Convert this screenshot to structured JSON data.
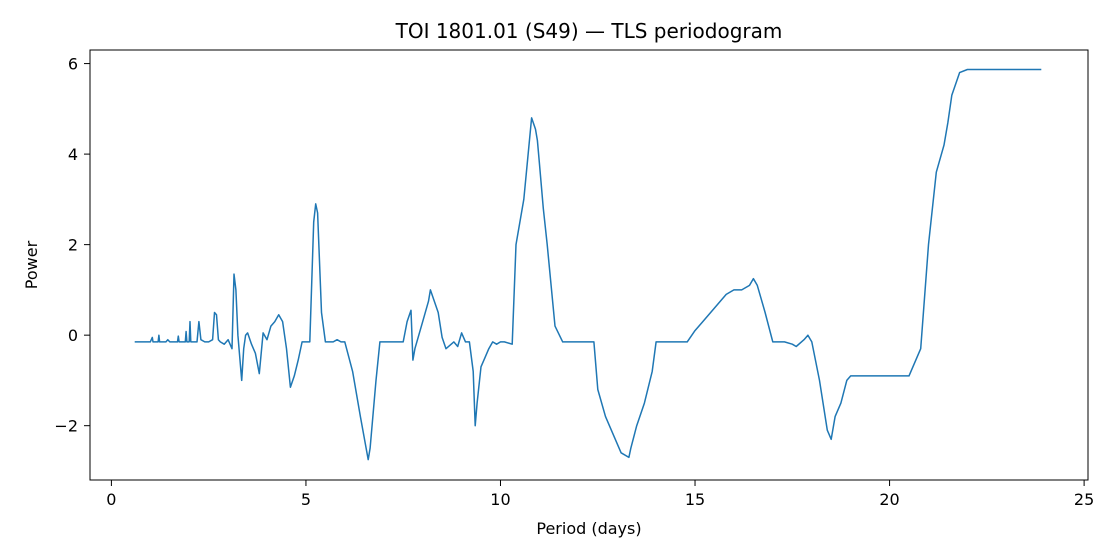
{
  "chart_data": {
    "type": "line",
    "title": "TOI 1801.01 (S49) — TLS periodogram",
    "xlabel": "Period (days)",
    "ylabel": "Power",
    "xlim": [
      -0.55,
      25.1
    ],
    "ylim": [
      -3.2,
      6.3
    ],
    "xticks": [
      0,
      5,
      10,
      15,
      20,
      25
    ],
    "yticks": [
      -2,
      0,
      2,
      4,
      6
    ],
    "xtick_labels": [
      "0",
      "5",
      "10",
      "15",
      "20",
      "25"
    ],
    "ytick_labels": [
      "−2",
      "0",
      "2",
      "4",
      "6"
    ],
    "grid": false,
    "legend": "none",
    "series": [
      {
        "color": "#1f77b4",
        "x": [
          0.6,
          1.0,
          1.05,
          1.07,
          1.1,
          1.2,
          1.22,
          1.24,
          1.3,
          1.4,
          1.45,
          1.5,
          1.7,
          1.72,
          1.74,
          1.8,
          1.9,
          1.92,
          1.94,
          2.0,
          2.02,
          2.04,
          2.1,
          2.2,
          2.25,
          2.3,
          2.4,
          2.5,
          2.6,
          2.65,
          2.7,
          2.75,
          2.8,
          2.9,
          3.0,
          3.1,
          3.15,
          3.2,
          3.25,
          3.3,
          3.35,
          3.4,
          3.45,
          3.5,
          3.6,
          3.7,
          3.8,
          3.9,
          4.0,
          4.1,
          4.2,
          4.3,
          4.4,
          4.5,
          4.6,
          4.7,
          4.8,
          4.9,
          5.0,
          5.1,
          5.2,
          5.25,
          5.3,
          5.4,
          5.5,
          5.6,
          5.7,
          5.8,
          5.9,
          6.0,
          6.2,
          6.4,
          6.6,
          6.65,
          6.8,
          6.9,
          7.0,
          7.2,
          7.5,
          7.6,
          7.7,
          7.75,
          7.8,
          8.0,
          8.15,
          8.2,
          8.4,
          8.5,
          8.6,
          8.8,
          8.9,
          9.0,
          9.1,
          9.2,
          9.3,
          9.35,
          9.4,
          9.5,
          9.6,
          9.7,
          9.8,
          9.9,
          10.0,
          10.1,
          10.3,
          10.4,
          10.6,
          10.8,
          10.9,
          10.95,
          11.0,
          11.1,
          11.2,
          11.4,
          11.6,
          11.7,
          11.8,
          12.0,
          12.4,
          12.5,
          12.7,
          12.9,
          13.1,
          13.3,
          13.35,
          13.5,
          13.7,
          13.9,
          14.0,
          14.2,
          14.5,
          14.8,
          15.0,
          15.2,
          15.5,
          15.8,
          16.0,
          16.2,
          16.4,
          16.5,
          16.6,
          16.7,
          16.8,
          17.0,
          17.3,
          17.5,
          17.6,
          17.8,
          17.9,
          18.0,
          18.2,
          18.4,
          18.5,
          18.6,
          18.75,
          18.9,
          19.0,
          19.2,
          19.5,
          20.0,
          20.5,
          20.8,
          21.0,
          21.2,
          21.4,
          21.5,
          21.6,
          21.8,
          22.0,
          22.5,
          23.0,
          23.5,
          23.9
        ],
        "y": [
          -0.15,
          -0.15,
          -0.05,
          -0.15,
          -0.15,
          -0.15,
          0.0,
          -0.15,
          -0.15,
          -0.15,
          -0.1,
          -0.15,
          -0.15,
          -0.02,
          -0.15,
          -0.15,
          -0.15,
          0.08,
          -0.15,
          -0.15,
          0.3,
          -0.15,
          -0.15,
          -0.15,
          0.3,
          -0.1,
          -0.15,
          -0.15,
          -0.1,
          0.5,
          0.45,
          -0.1,
          -0.15,
          -0.2,
          -0.1,
          -0.3,
          1.35,
          1.0,
          0.0,
          -0.5,
          -1.0,
          -0.3,
          0.0,
          0.05,
          -0.2,
          -0.4,
          -0.85,
          0.05,
          -0.1,
          0.2,
          0.3,
          0.45,
          0.3,
          -0.3,
          -1.15,
          -0.9,
          -0.55,
          -0.15,
          -0.15,
          -0.15,
          2.5,
          2.9,
          2.7,
          0.5,
          -0.15,
          -0.15,
          -0.15,
          -0.1,
          -0.15,
          -0.15,
          -0.8,
          -1.8,
          -2.75,
          -2.5,
          -1.0,
          -0.15,
          -0.15,
          -0.15,
          -0.15,
          0.3,
          0.55,
          -0.55,
          -0.3,
          0.3,
          0.75,
          1.0,
          0.5,
          -0.05,
          -0.3,
          -0.15,
          -0.25,
          0.05,
          -0.15,
          -0.15,
          -0.8,
          -2.0,
          -1.5,
          -0.7,
          -0.5,
          -0.3,
          -0.15,
          -0.2,
          -0.15,
          -0.15,
          -0.2,
          2.0,
          3.0,
          4.8,
          4.55,
          4.3,
          3.8,
          2.8,
          2.0,
          0.2,
          -0.15,
          -0.15,
          -0.15,
          -0.15,
          -0.15,
          -1.2,
          -1.8,
          -2.2,
          -2.6,
          -2.7,
          -2.5,
          -2.0,
          -1.5,
          -0.8,
          -0.15,
          -0.15,
          -0.15,
          -0.15,
          0.1,
          0.3,
          0.6,
          0.9,
          1.0,
          1.0,
          1.1,
          1.25,
          1.1,
          0.8,
          0.5,
          -0.15,
          -0.15,
          -0.2,
          -0.25,
          -0.1,
          0.0,
          -0.15,
          -1.0,
          -2.1,
          -2.3,
          -1.8,
          -1.5,
          -1.0,
          -0.9,
          -0.9,
          -0.9,
          -0.9,
          -0.9,
          -0.3,
          2.0,
          3.6,
          4.2,
          4.7,
          5.3,
          5.8,
          5.87,
          5.87,
          5.87,
          5.87,
          5.87
        ]
      }
    ]
  }
}
